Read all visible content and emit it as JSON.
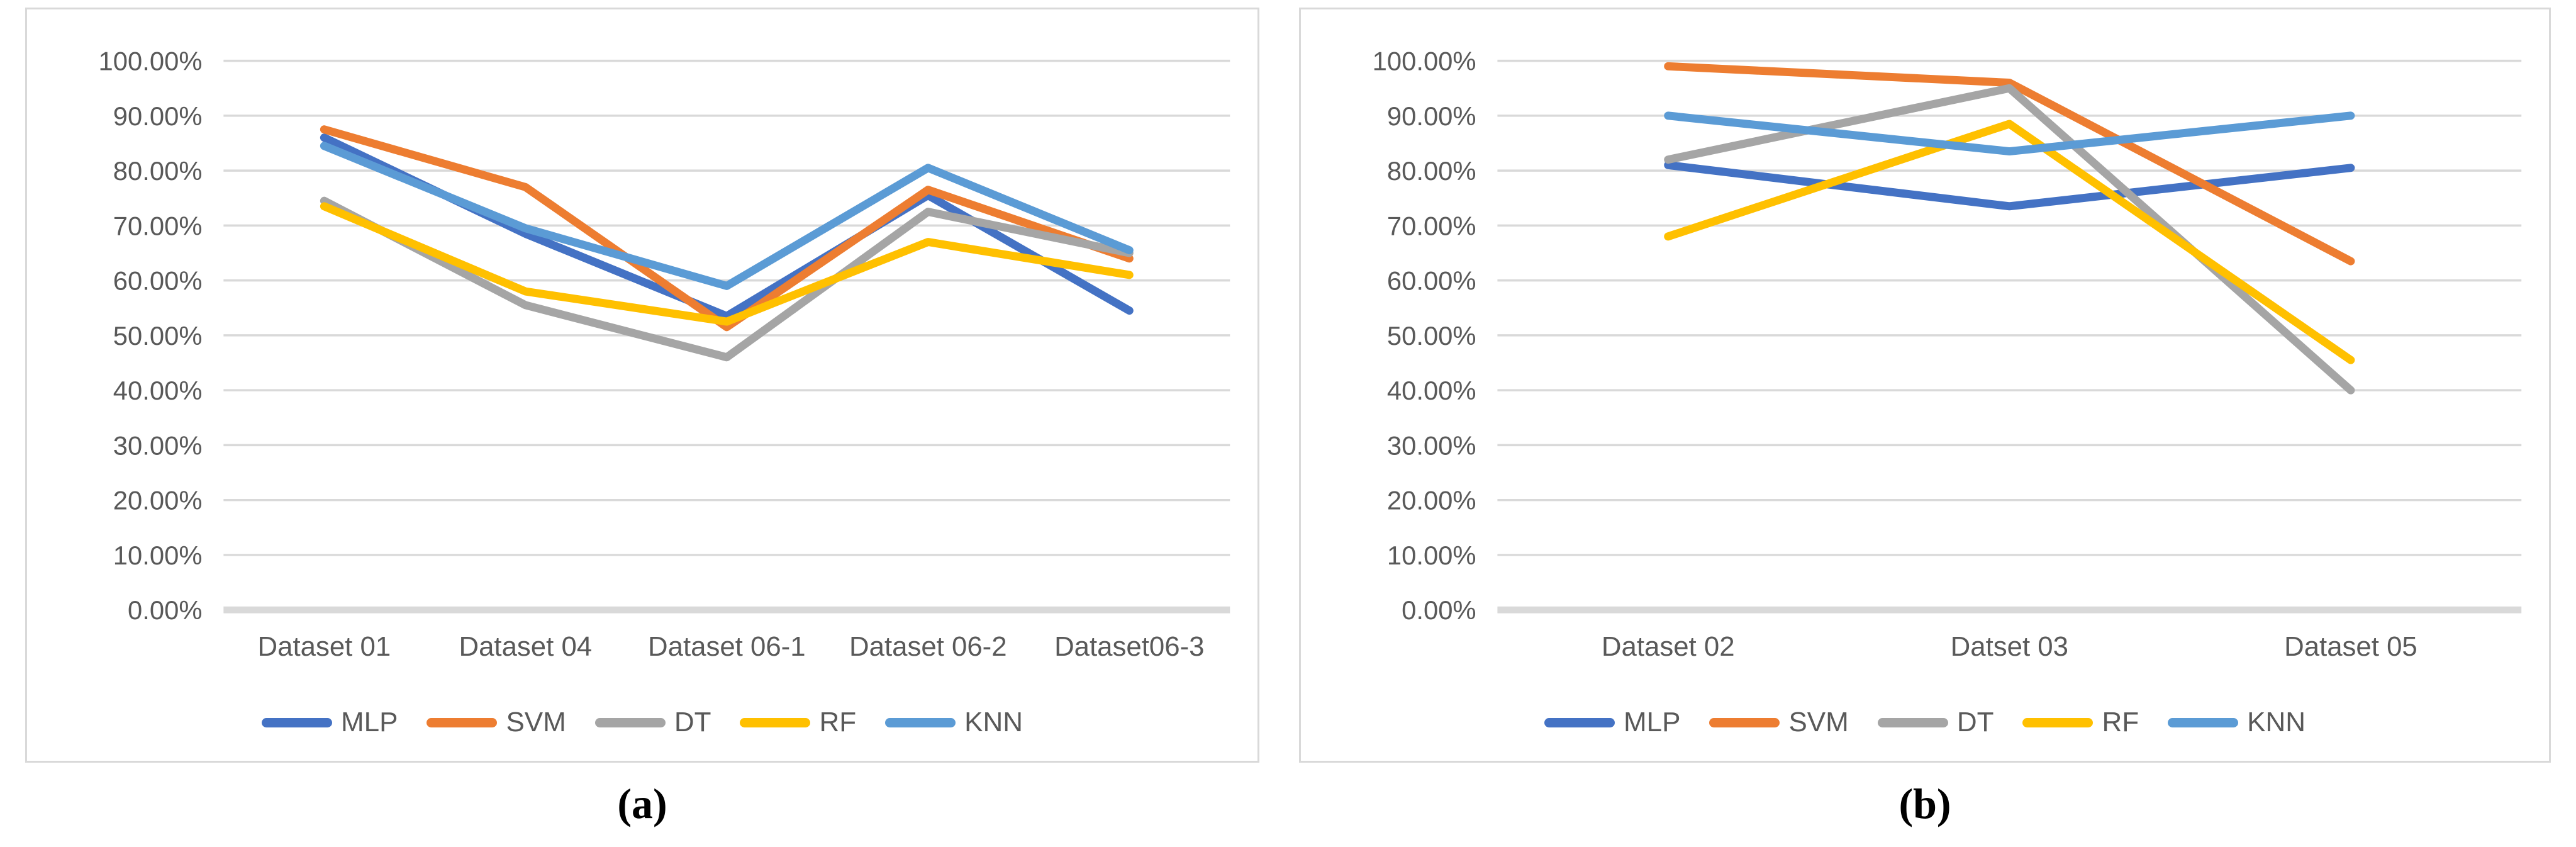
{
  "figure": {
    "background": "#ffffff",
    "grid_color": "#D9D9D9",
    "border_color": "#D9D9D9",
    "text_color": "#595959",
    "caption_color": "#000000"
  },
  "chart_data": [
    {
      "type": "line",
      "title": "",
      "caption": "(a)",
      "xlabel": "",
      "ylabel": "",
      "ylim": [
        0,
        100
      ],
      "y_tick_step": 10,
      "grid": "horizontal",
      "legend_position": "bottom",
      "y_tick_labels": [
        "100.00%",
        "90.00%",
        "80.00%",
        "70.00%",
        "60.00%",
        "50.00%",
        "40.00%",
        "30.00%",
        "20.00%",
        "10.00%",
        "0.00%"
      ],
      "categories": [
        "Dataset 01",
        "Dataset 04",
        "Dataset 06-1",
        "Dataset 06-2",
        "Dataset06-3"
      ],
      "series": [
        {
          "name": "MLP",
          "color": "#4472C4",
          "values": [
            86,
            68.5,
            53.5,
            75.5,
            54.5
          ]
        },
        {
          "name": "SVM",
          "color": "#ED7D31",
          "values": [
            87.5,
            77,
            51.5,
            76.5,
            64
          ]
        },
        {
          "name": "DT",
          "color": "#A5A5A5",
          "values": [
            74.5,
            55.5,
            46,
            72.5,
            65
          ]
        },
        {
          "name": "RF",
          "color": "#FFC000",
          "values": [
            73.5,
            58,
            52.5,
            67,
            61
          ]
        },
        {
          "name": "KNN",
          "color": "#5B9BD5",
          "values": [
            84.5,
            69.5,
            59,
            80.5,
            65.5
          ]
        }
      ]
    },
    {
      "type": "line",
      "title": "",
      "caption": "(b)",
      "xlabel": "",
      "ylabel": "",
      "ylim": [
        0,
        100
      ],
      "y_tick_step": 10,
      "grid": "horizontal",
      "legend_position": "bottom",
      "y_tick_labels": [
        "100.00%",
        "90.00%",
        "80.00%",
        "70.00%",
        "60.00%",
        "50.00%",
        "40.00%",
        "30.00%",
        "20.00%",
        "10.00%",
        "0.00%"
      ],
      "categories": [
        "Dataset 02",
        "Datset 03",
        "Dataset 05"
      ],
      "series": [
        {
          "name": "MLP",
          "color": "#4472C4",
          "values": [
            81,
            73.5,
            80.5
          ]
        },
        {
          "name": "SVM",
          "color": "#ED7D31",
          "values": [
            99,
            96,
            63.5
          ]
        },
        {
          "name": "DT",
          "color": "#A5A5A5",
          "values": [
            82,
            95,
            40
          ]
        },
        {
          "name": "RF",
          "color": "#FFC000",
          "values": [
            68,
            88.5,
            45.5
          ]
        },
        {
          "name": "KNN",
          "color": "#5B9BD5",
          "values": [
            90,
            83.5,
            90
          ]
        }
      ]
    }
  ]
}
